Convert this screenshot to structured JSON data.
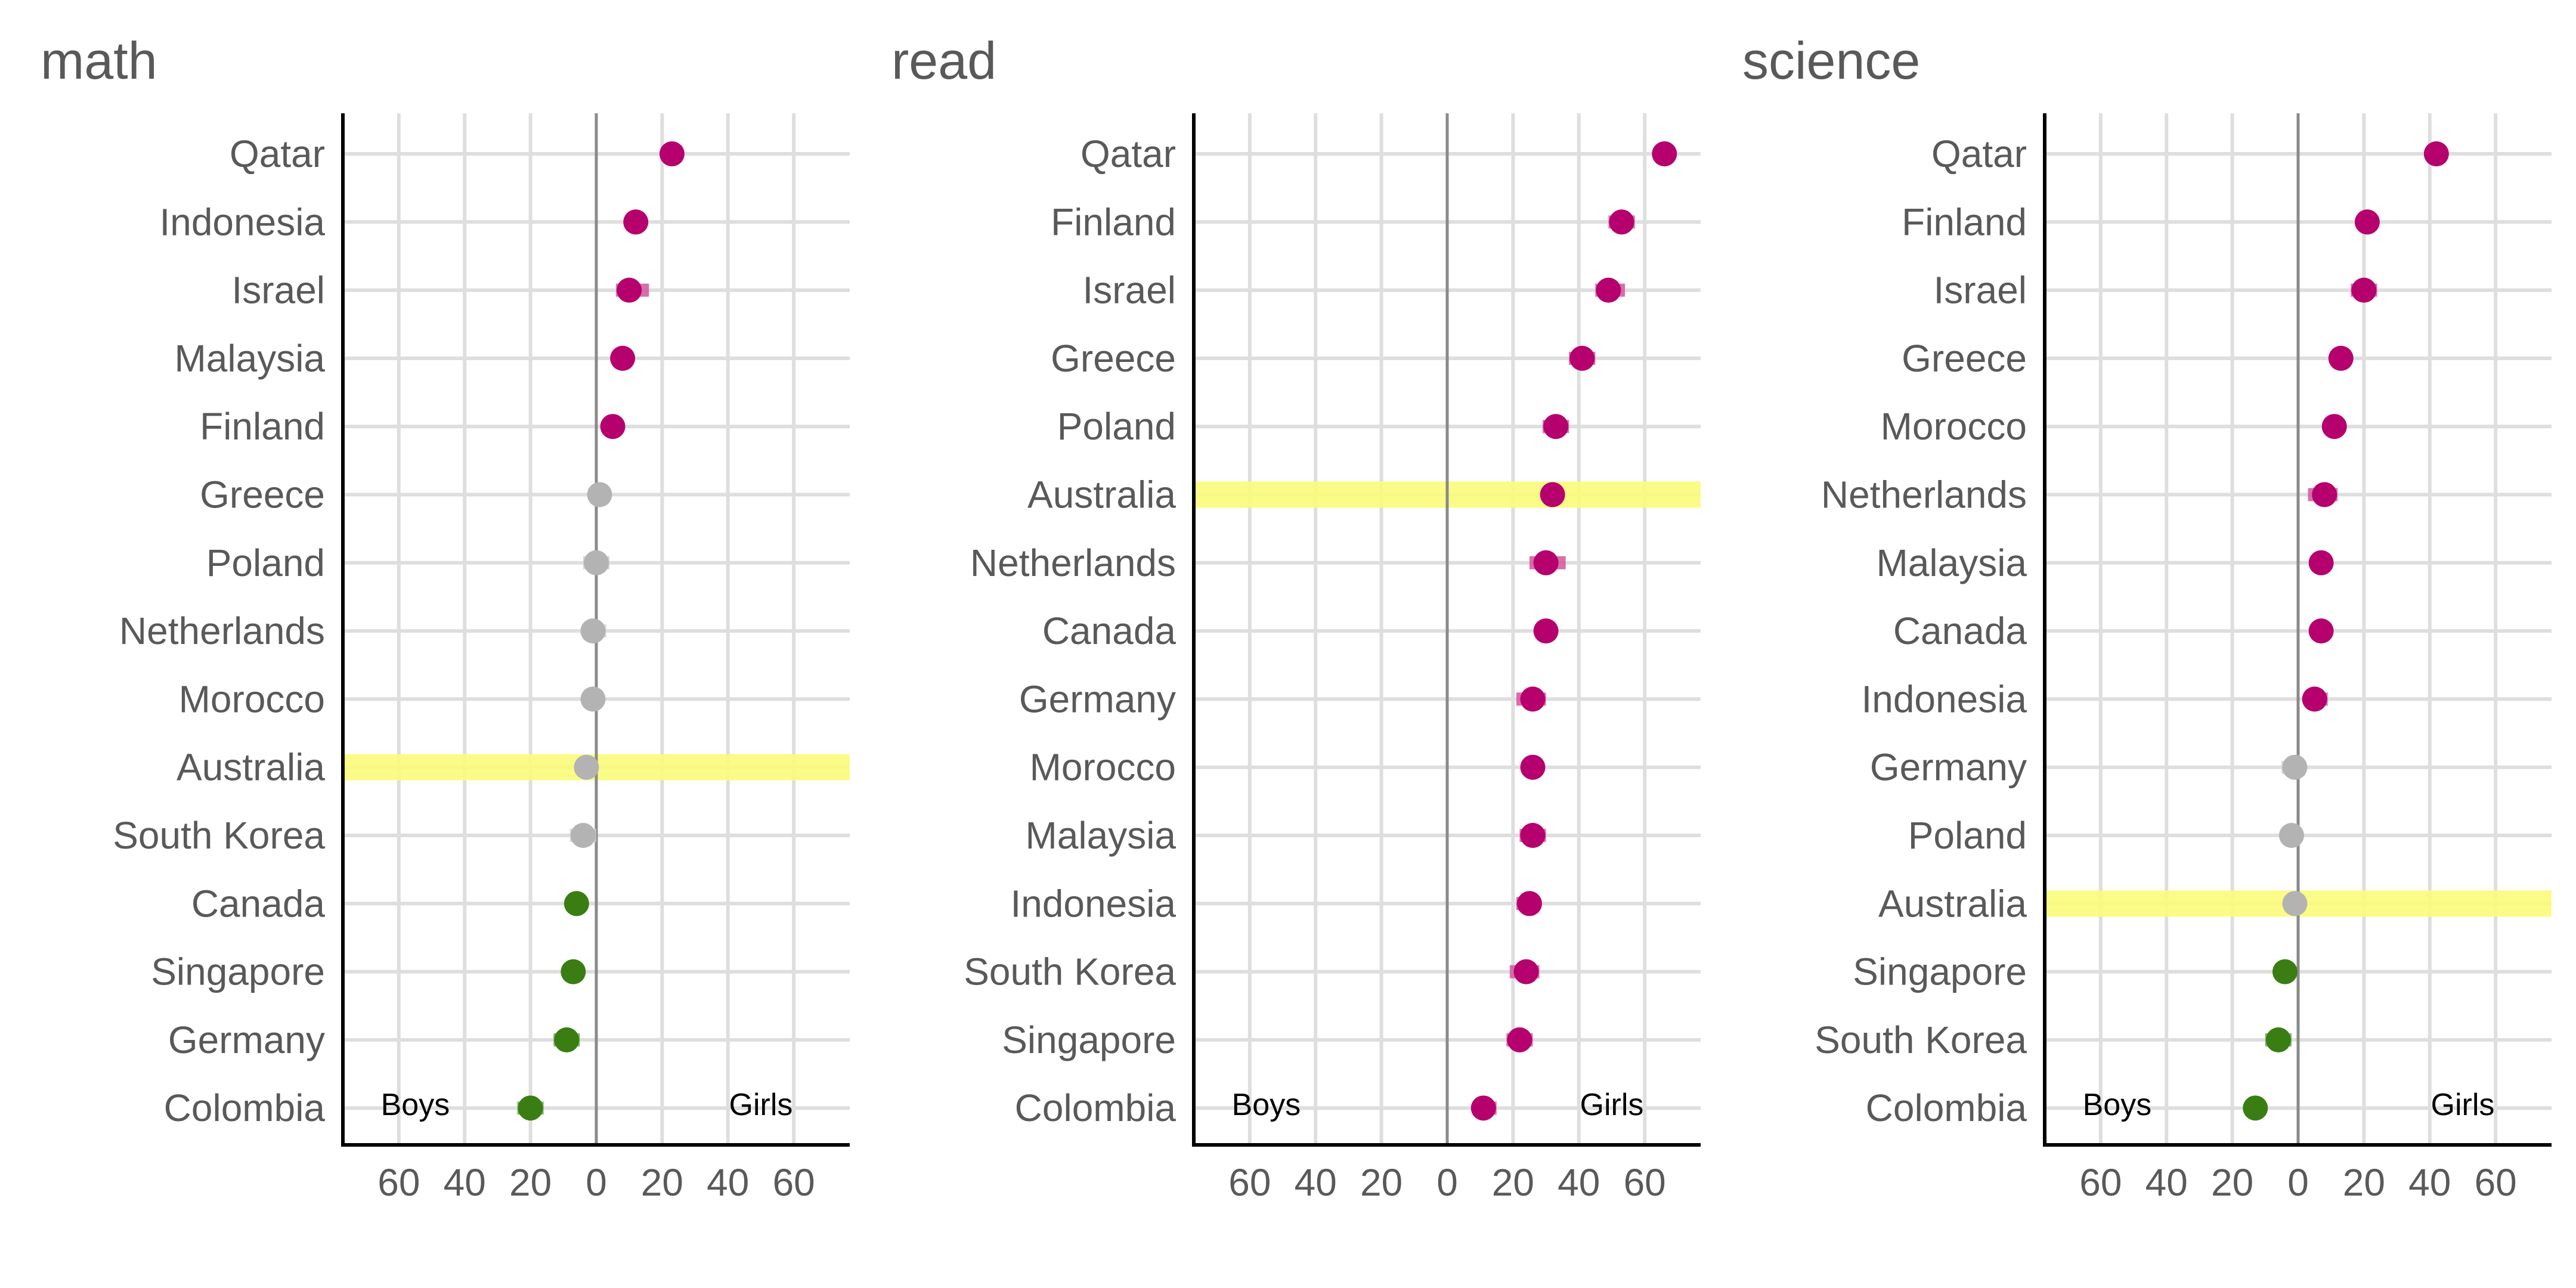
{
  "chart_data": [
    {
      "type": "dot-interval",
      "title": "math",
      "x_ticks": [
        "60",
        "40",
        "20",
        "0",
        "20",
        "40",
        "60"
      ],
      "x_tick_values": [
        -60,
        -40,
        -20,
        0,
        20,
        40,
        60
      ],
      "xlim": [
        -77,
        77
      ],
      "left_annotation": "Boys",
      "right_annotation": "Girls",
      "highlight": "Australia",
      "points": [
        {
          "country": "Qatar",
          "value": 23,
          "low": 22,
          "high": 24,
          "status": "girls"
        },
        {
          "country": "Indonesia",
          "value": 12,
          "low": 10,
          "high": 14,
          "status": "girls"
        },
        {
          "country": "Israel",
          "value": 10,
          "low": 6,
          "high": 16,
          "status": "girls"
        },
        {
          "country": "Malaysia",
          "value": 8,
          "low": 7,
          "high": 10,
          "status": "girls"
        },
        {
          "country": "Finland",
          "value": 5,
          "low": 3,
          "high": 7,
          "status": "girls"
        },
        {
          "country": "Greece",
          "value": 1,
          "low": -1,
          "high": 3,
          "status": "none"
        },
        {
          "country": "Poland",
          "value": 0,
          "low": -4,
          "high": 4,
          "status": "none"
        },
        {
          "country": "Netherlands",
          "value": -1,
          "low": -4,
          "high": 3,
          "status": "none"
        },
        {
          "country": "Morocco",
          "value": -1,
          "low": -3,
          "high": 1,
          "status": "none"
        },
        {
          "country": "Australia",
          "value": -3,
          "low": -5,
          "high": -1,
          "status": "none"
        },
        {
          "country": "South Korea",
          "value": -4,
          "low": -8,
          "high": 0,
          "status": "none"
        },
        {
          "country": "Canada",
          "value": -6,
          "low": -8,
          "high": -4,
          "status": "boys"
        },
        {
          "country": "Singapore",
          "value": -7,
          "low": -9,
          "high": -4,
          "status": "boys"
        },
        {
          "country": "Germany",
          "value": -9,
          "low": -13,
          "high": -5,
          "status": "boys"
        },
        {
          "country": "Colombia",
          "value": -20,
          "low": -24,
          "high": -16,
          "status": "boys"
        }
      ]
    },
    {
      "type": "dot-interval",
      "title": "read",
      "x_ticks": [
        "60",
        "40",
        "20",
        "0",
        "20",
        "40",
        "60"
      ],
      "x_tick_values": [
        -60,
        -40,
        -20,
        0,
        20,
        40,
        60
      ],
      "xlim": [
        -77,
        77
      ],
      "left_annotation": "Boys",
      "right_annotation": "Girls",
      "highlight": "Australia",
      "points": [
        {
          "country": "Qatar",
          "value": 66,
          "low": 65,
          "high": 67,
          "status": "girls"
        },
        {
          "country": "Finland",
          "value": 53,
          "low": 49,
          "high": 57,
          "status": "girls"
        },
        {
          "country": "Israel",
          "value": 49,
          "low": 45,
          "high": 54,
          "status": "girls"
        },
        {
          "country": "Greece",
          "value": 41,
          "low": 37,
          "high": 45,
          "status": "girls"
        },
        {
          "country": "Poland",
          "value": 33,
          "low": 29,
          "high": 37,
          "status": "girls"
        },
        {
          "country": "Australia",
          "value": 32,
          "low": 30,
          "high": 34,
          "status": "girls"
        },
        {
          "country": "Netherlands",
          "value": 30,
          "low": 25,
          "high": 36,
          "status": "girls"
        },
        {
          "country": "Canada",
          "value": 30,
          "low": 28,
          "high": 32,
          "status": "girls"
        },
        {
          "country": "Germany",
          "value": 26,
          "low": 21,
          "high": 30,
          "status": "girls"
        },
        {
          "country": "Morocco",
          "value": 26,
          "low": 24,
          "high": 29,
          "status": "girls"
        },
        {
          "country": "Malaysia",
          "value": 26,
          "low": 22,
          "high": 30,
          "status": "girls"
        },
        {
          "country": "Indonesia",
          "value": 25,
          "low": 21,
          "high": 28,
          "status": "girls"
        },
        {
          "country": "South Korea",
          "value": 24,
          "low": 19,
          "high": 28,
          "status": "girls"
        },
        {
          "country": "Singapore",
          "value": 22,
          "low": 18,
          "high": 26,
          "status": "girls"
        },
        {
          "country": "Colombia",
          "value": 11,
          "low": 8,
          "high": 15,
          "status": "girls"
        }
      ]
    },
    {
      "type": "dot-interval",
      "title": "science",
      "x_ticks": [
        "60",
        "40",
        "20",
        "0",
        "20",
        "40",
        "60"
      ],
      "x_tick_values": [
        -60,
        -40,
        -20,
        0,
        20,
        40,
        60
      ],
      "xlim": [
        -77,
        77
      ],
      "left_annotation": "Boys",
      "right_annotation": "Girls",
      "highlight": "Australia",
      "points": [
        {
          "country": "Qatar",
          "value": 42,
          "low": 41,
          "high": 43,
          "status": "girls"
        },
        {
          "country": "Finland",
          "value": 21,
          "low": 18,
          "high": 24,
          "status": "girls"
        },
        {
          "country": "Israel",
          "value": 20,
          "low": 16,
          "high": 24,
          "status": "girls"
        },
        {
          "country": "Greece",
          "value": 13,
          "low": 10,
          "high": 16,
          "status": "girls"
        },
        {
          "country": "Morocco",
          "value": 11,
          "low": 9,
          "high": 13,
          "status": "girls"
        },
        {
          "country": "Netherlands",
          "value": 8,
          "low": 3,
          "high": 12,
          "status": "girls"
        },
        {
          "country": "Malaysia",
          "value": 7,
          "low": 5,
          "high": 9,
          "status": "girls"
        },
        {
          "country": "Canada",
          "value": 7,
          "low": 5,
          "high": 9,
          "status": "girls"
        },
        {
          "country": "Indonesia",
          "value": 5,
          "low": 2,
          "high": 9,
          "status": "girls"
        },
        {
          "country": "Germany",
          "value": -1,
          "low": -5,
          "high": 2,
          "status": "none"
        },
        {
          "country": "Poland",
          "value": -2,
          "low": -5,
          "high": 1,
          "status": "none"
        },
        {
          "country": "Australia",
          "value": -1,
          "low": -3,
          "high": 1,
          "status": "none"
        },
        {
          "country": "Singapore",
          "value": -4,
          "low": -6,
          "high": -2,
          "status": "boys"
        },
        {
          "country": "South Korea",
          "value": -6,
          "low": -10,
          "high": -2,
          "status": "boys"
        },
        {
          "country": "Colombia",
          "value": -13,
          "low": -15,
          "high": -11,
          "status": "boys"
        }
      ]
    }
  ],
  "colors": {
    "girls": "#b5006e",
    "girls_interval": "#d2579c",
    "boys": "#3a7d12",
    "boys_interval": "#6aa84f",
    "none": "#b3b3b3",
    "none_interval": "#cfcfcf",
    "highlight": "#fbfb7a"
  }
}
